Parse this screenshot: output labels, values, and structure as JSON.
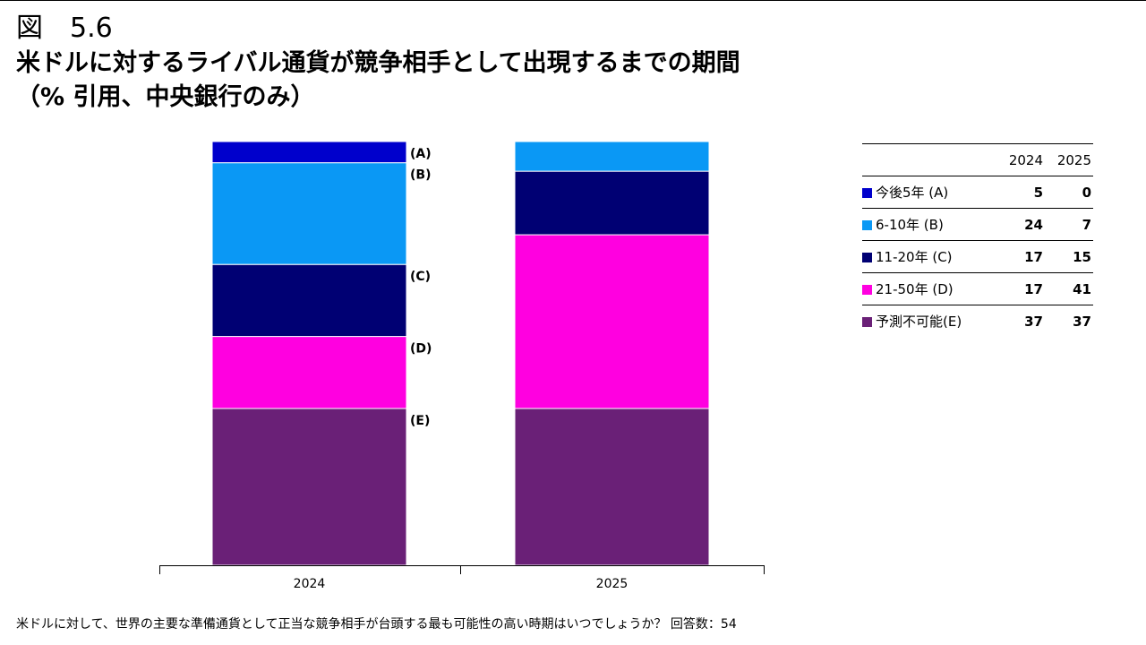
{
  "figure_label": "図　5.6",
  "title": {
    "line1": "米ドルに対するライバル通貨が競争相手として出現するまでの期間",
    "line2": "（% 引用、中央銀行のみ）"
  },
  "colors": {
    "A": "#0000cc",
    "B": "#0a98f5",
    "C": "#000073",
    "D": "#ff00e0",
    "E": "#6a2077"
  },
  "chart_data": {
    "type": "bar",
    "stacked": true,
    "categories": [
      "2024",
      "2025"
    ],
    "series": [
      {
        "key": "E",
        "name": "予測不可能(E)",
        "bar_label": "(E)",
        "values": [
          37,
          37
        ]
      },
      {
        "key": "D",
        "name": "21-50年 (D)",
        "bar_label": "(D)",
        "values": [
          17,
          41
        ]
      },
      {
        "key": "C",
        "name": "11-20年 (C)",
        "bar_label": "(C)",
        "values": [
          17,
          15
        ]
      },
      {
        "key": "B",
        "name": "6-10年 (B)",
        "bar_label": "(B)",
        "values": [
          24,
          7
        ]
      },
      {
        "key": "A",
        "name": "今後5年 (A)",
        "bar_label": "(A)",
        "values": [
          5,
          0
        ]
      }
    ],
    "ylim": [
      0,
      100
    ],
    "grid": false,
    "legend": "right-table"
  },
  "legend_table": {
    "headers": [
      "2024",
      "2025"
    ],
    "rows": [
      {
        "key": "A",
        "label": "今後5年 (A)",
        "v2024": "5",
        "v2025": "0"
      },
      {
        "key": "B",
        "label": "6-10年 (B)",
        "v2024": "24",
        "v2025": "7"
      },
      {
        "key": "C",
        "label": "11-20年 (C)",
        "v2024": "17",
        "v2025": "15"
      },
      {
        "key": "D",
        "label": "21-50年 (D)",
        "v2024": "17",
        "v2025": "41"
      },
      {
        "key": "E",
        "label": "予測不可能(E)",
        "v2024": "37",
        "v2025": "37"
      }
    ]
  },
  "footnote": "米ドルに対して、世界の主要な準備通貨として正当な競争相手が台頭する最も可能性の高い時期はいつでしょうか？ 回答数：54"
}
